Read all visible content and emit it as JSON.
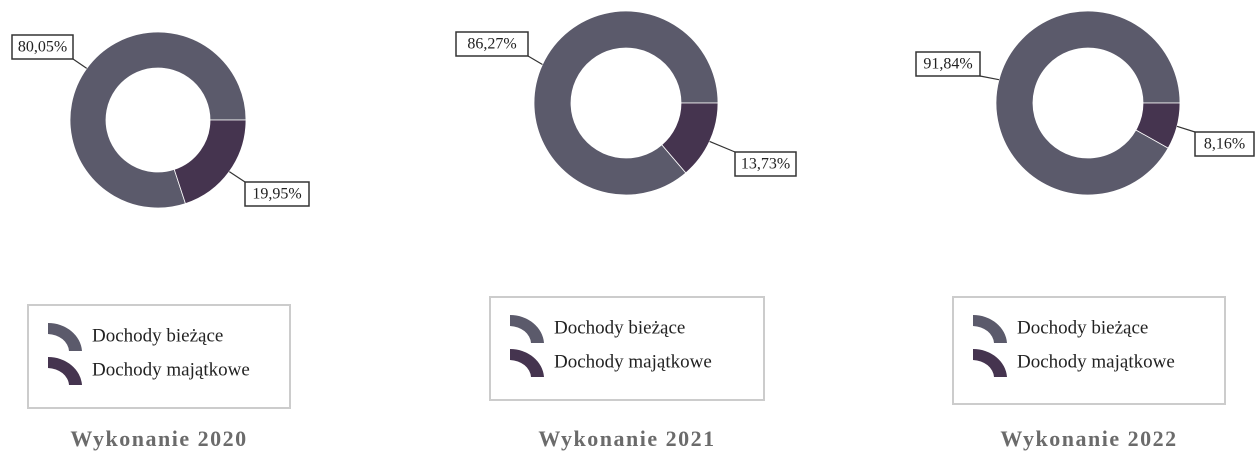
{
  "chart_data": [
    {
      "type": "pie",
      "title": "Wykonanie 2020",
      "categories": [
        "Dochody bieżące",
        "Dochody majątkowe"
      ],
      "values": [
        80.05,
        19.95
      ],
      "value_labels": [
        "80,05%",
        "19,95%"
      ],
      "colors": [
        "#5b5a6b",
        "#45344f"
      ]
    },
    {
      "type": "pie",
      "title": "Wykonanie 2021",
      "categories": [
        "Dochody bieżące",
        "Dochody majątkowe"
      ],
      "values": [
        86.27,
        13.73
      ],
      "value_labels": [
        "86,27%",
        "13,73%"
      ],
      "colors": [
        "#5b5a6b",
        "#45344f"
      ]
    },
    {
      "type": "pie",
      "title": "Wykonanie 2022",
      "categories": [
        "Dochody bieżące",
        "Dochody majątkowe"
      ],
      "values": [
        91.84,
        8.16
      ],
      "value_labels": [
        "91,84%",
        "8,16%"
      ],
      "colors": [
        "#5b5a6b",
        "#45344f"
      ]
    }
  ]
}
